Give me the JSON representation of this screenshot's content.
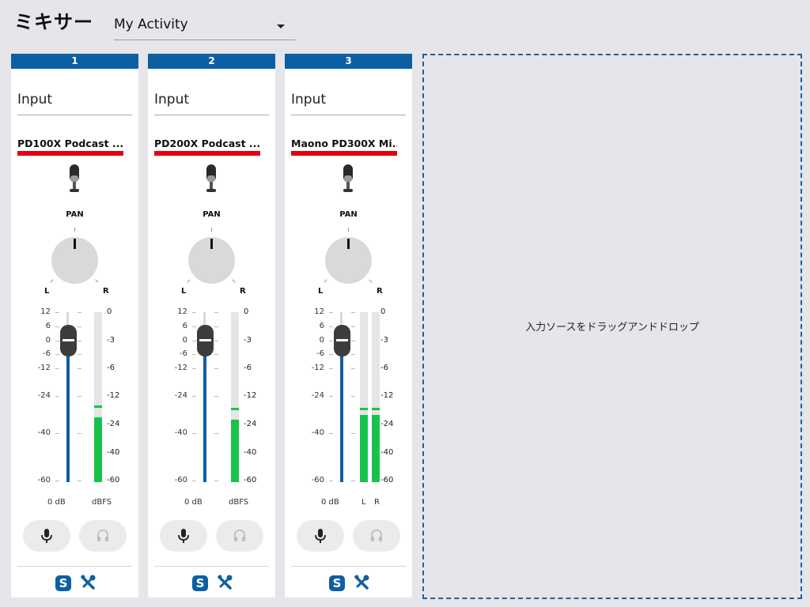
{
  "app": {
    "title": "ミキサー"
  },
  "activity": {
    "selected": "My Activity"
  },
  "channels": [
    {
      "number": "1",
      "input_label": "Input",
      "device": "PD100X Podcast ...",
      "pan_label": "PAN",
      "pan_l": "L",
      "pan_r": "R",
      "slider_scale": [
        "12",
        "6",
        "0",
        "-6",
        "-12",
        "-24",
        "-40",
        "-60"
      ],
      "meter_scale": [
        "0",
        "-3",
        "-6",
        "-12",
        "-24",
        "-40",
        "-60"
      ],
      "gain": "0 dB",
      "meter_unit": "dBFS",
      "stereo": false,
      "meter_levels_db": [
        -21
      ],
      "meter_peaks_db": [
        -16
      ]
    },
    {
      "number": "2",
      "input_label": "Input",
      "device": "PD200X Podcast ...",
      "pan_label": "PAN",
      "pan_l": "L",
      "pan_r": "R",
      "slider_scale": [
        "12",
        "6",
        "0",
        "-6",
        "-12",
        "-24",
        "-40",
        "-60"
      ],
      "meter_scale": [
        "0",
        "-3",
        "-6",
        "-12",
        "-24",
        "-40",
        "-60"
      ],
      "gain": "0 dB",
      "meter_unit": "dBFS",
      "stereo": false,
      "meter_levels_db": [
        -22
      ],
      "meter_peaks_db": [
        -17
      ]
    },
    {
      "number": "3",
      "input_label": "Input",
      "device": "Maono PD300X Mi...",
      "pan_label": "PAN",
      "pan_l": "L",
      "pan_r": "R",
      "slider_scale": [
        "12",
        "6",
        "0",
        "-6",
        "-12",
        "-24",
        "-40",
        "-60"
      ],
      "meter_scale": [
        "0",
        "-3",
        "-6",
        "-12",
        "-24",
        "-40",
        "-60"
      ],
      "gain": "0 dB",
      "meter_unit": "",
      "meter_l": "L",
      "meter_r": "R",
      "stereo": true,
      "meter_levels_db": [
        -20,
        -20
      ],
      "meter_peaks_db": [
        -17,
        -17
      ]
    }
  ],
  "drop_zone": {
    "text": "入力ソースをドラッグアンドドロップ"
  },
  "colors": {
    "accent": "#0d5fa3",
    "device_bar": "#e5000d",
    "meter": "#19c34b",
    "background": "#e6e6ea"
  },
  "icons": {
    "mic": "microphone-icon",
    "headphones": "headphones-icon",
    "s": "s-badge-icon",
    "tools": "tools-icon",
    "dropdown": "caret-down-icon",
    "device": "podcast-mic-icon"
  }
}
